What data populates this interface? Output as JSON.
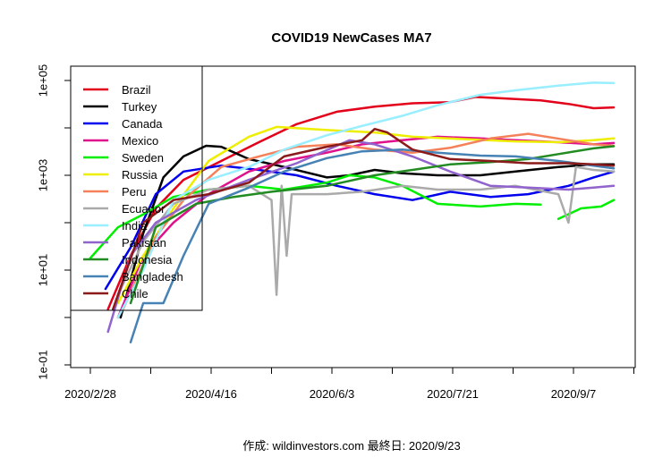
{
  "chart_data": {
    "type": "line",
    "title": "COVID19 NewCases MA7",
    "caption": "作成: wildinvestors.com 最終日: 2020/9/23",
    "xlabel": "",
    "ylabel": "",
    "x_ticks": [
      "2020/2/28",
      "2020/4/16",
      "2020/6/3",
      "2020/7/21",
      "2020/9/7"
    ],
    "x_range": [
      "2020/2/28",
      "2020/9/23"
    ],
    "y_scale": "log",
    "y_ticks": [
      "1e-01",
      "1e+01",
      "1e+03",
      "1e+05"
    ],
    "y_range": [
      0.1,
      100000
    ],
    "grid": false,
    "legend_position": "top-left",
    "series": [
      {
        "name": "Brazil",
        "color": "#e3001b",
        "points": [
          [
            "2020/3/6",
            1.5
          ],
          [
            "2020/3/15",
            20
          ],
          [
            "2020/3/25",
            200
          ],
          [
            "2020/4/5",
            800
          ],
          [
            "2020/4/20",
            2000
          ],
          [
            "2020/5/5",
            5000
          ],
          [
            "2020/5/20",
            12000
          ],
          [
            "2020/6/5",
            22000
          ],
          [
            "2020/6/20",
            28000
          ],
          [
            "2020/7/5",
            33000
          ],
          [
            "2020/7/20",
            35000
          ],
          [
            "2020/7/30",
            45000
          ],
          [
            "2020/8/10",
            42000
          ],
          [
            "2020/8/25",
            38000
          ],
          [
            "2020/9/5",
            32000
          ],
          [
            "2020/9/15",
            26000
          ],
          [
            "2020/9/23",
            27000
          ]
        ]
      },
      {
        "name": "Turkey",
        "color": "#000000",
        "points": [
          [
            "2020/3/11",
            1
          ],
          [
            "2020/3/20",
            60
          ],
          [
            "2020/3/28",
            900
          ],
          [
            "2020/4/5",
            2500
          ],
          [
            "2020/4/14",
            4200
          ],
          [
            "2020/4/20",
            4000
          ],
          [
            "2020/5/1",
            2200
          ],
          [
            "2020/5/15",
            1500
          ],
          [
            "2020/6/1",
            900
          ],
          [
            "2020/6/10",
            1000
          ],
          [
            "2020/6/20",
            1300
          ],
          [
            "2020/7/1",
            1100
          ],
          [
            "2020/7/15",
            1000
          ],
          [
            "2020/8/1",
            1000
          ],
          [
            "2020/8/15",
            1200
          ],
          [
            "2020/9/1",
            1500
          ],
          [
            "2020/9/15",
            1700
          ],
          [
            "2020/9/23",
            1700
          ]
        ]
      },
      {
        "name": "Canada",
        "color": "#0000ee",
        "points": [
          [
            "2020/3/5",
            4
          ],
          [
            "2020/3/15",
            30
          ],
          [
            "2020/3/25",
            400
          ],
          [
            "2020/4/5",
            1200
          ],
          [
            "2020/4/20",
            1600
          ],
          [
            "2020/5/5",
            1300
          ],
          [
            "2020/5/20",
            1000
          ],
          [
            "2020/6/5",
            600
          ],
          [
            "2020/6/20",
            400
          ],
          [
            "2020/7/5",
            300
          ],
          [
            "2020/7/20",
            450
          ],
          [
            "2020/8/5",
            350
          ],
          [
            "2020/8/20",
            400
          ],
          [
            "2020/9/5",
            600
          ],
          [
            "2020/9/15",
            900
          ],
          [
            "2020/9/23",
            1200
          ]
        ]
      },
      {
        "name": "Mexico",
        "color": "#e0118c",
        "points": [
          [
            "2020/3/10",
            1
          ],
          [
            "2020/3/20",
            20
          ],
          [
            "2020/4/1",
            100
          ],
          [
            "2020/4/15",
            400
          ],
          [
            "2020/5/1",
            1200
          ],
          [
            "2020/5/15",
            2000
          ],
          [
            "2020/6/1",
            3000
          ],
          [
            "2020/6/15",
            4500
          ],
          [
            "2020/7/1",
            5500
          ],
          [
            "2020/7/15",
            6500
          ],
          [
            "2020/8/1",
            6000
          ],
          [
            "2020/8/15",
            5500
          ],
          [
            "2020/9/1",
            5000
          ],
          [
            "2020/9/15",
            4500
          ],
          [
            "2020/9/23",
            4800
          ]
        ]
      },
      {
        "name": "Sweden",
        "color": "#00ee00",
        "points": [
          [
            "2020/2/28",
            18
          ],
          [
            "2020/3/10",
            80
          ],
          [
            "2020/3/20",
            150
          ],
          [
            "2020/4/1",
            350
          ],
          [
            "2020/4/15",
            500
          ],
          [
            "2020/5/1",
            600
          ],
          [
            "2020/5/15",
            500
          ],
          [
            "2020/6/1",
            700
          ],
          [
            "2020/6/10",
            1000
          ],
          [
            "2020/6/20",
            900
          ],
          [
            "2020/7/1",
            600
          ],
          [
            "2020/7/15",
            250
          ],
          [
            "2020/8/1",
            220
          ],
          [
            "2020/8/15",
            250
          ],
          [
            "2020/8/25",
            240
          ],
          [
            null,
            null
          ],
          [
            "2020/9/1",
            120
          ],
          [
            "2020/9/10",
            200
          ],
          [
            "2020/9/18",
            220
          ],
          [
            "2020/9/23",
            300
          ]
        ]
      },
      {
        "name": "Russia",
        "color": "#eeee00",
        "points": [
          [
            "2020/3/10",
            2
          ],
          [
            "2020/3/20",
            20
          ],
          [
            "2020/4/1",
            200
          ],
          [
            "2020/4/15",
            2000
          ],
          [
            "2020/5/1",
            6500
          ],
          [
            "2020/5/12",
            10500
          ],
          [
            "2020/6/1",
            9000
          ],
          [
            "2020/6/20",
            8000
          ],
          [
            "2020/7/5",
            6500
          ],
          [
            "2020/7/25",
            5800
          ],
          [
            "2020/8/15",
            5200
          ],
          [
            "2020/9/1",
            5000
          ],
          [
            "2020/9/15",
            5500
          ],
          [
            "2020/9/23",
            6000
          ]
        ]
      },
      {
        "name": "Peru",
        "color": "#f5815b",
        "points": [
          [
            "2020/3/12",
            1.5
          ],
          [
            "2020/3/25",
            50
          ],
          [
            "2020/4/5",
            300
          ],
          [
            "2020/4/20",
            1500
          ],
          [
            "2020/5/5",
            2500
          ],
          [
            "2020/5/20",
            4000
          ],
          [
            "2020/6/5",
            4500
          ],
          [
            "2020/6/20",
            3500
          ],
          [
            "2020/7/5",
            3000
          ],
          [
            "2020/7/20",
            3800
          ],
          [
            "2020/8/5",
            6000
          ],
          [
            "2020/8/20",
            7500
          ],
          [
            "2020/9/5",
            5500
          ],
          [
            "2020/9/15",
            4500
          ],
          [
            "2020/9/23",
            4200
          ]
        ]
      },
      {
        "name": "Ecuador",
        "color": "#aaaaaa",
        "points": [
          [
            "2020/3/10",
            3
          ],
          [
            "2020/3/20",
            40
          ],
          [
            "2020/4/1",
            250
          ],
          [
            "2020/4/15",
            500
          ],
          [
            "2020/5/1",
            600
          ],
          [
            "2020/5/10",
            300
          ],
          [
            "2020/5/12",
            3
          ],
          [
            "2020/5/14",
            600
          ],
          [
            "2020/5/16",
            20
          ],
          [
            "2020/5/18",
            400
          ],
          [
            "2020/6/1",
            400
          ],
          [
            "2020/6/15",
            450
          ],
          [
            "2020/7/1",
            600
          ],
          [
            "2020/7/15",
            500
          ],
          [
            "2020/8/1",
            500
          ],
          [
            "2020/8/15",
            600
          ],
          [
            "2020/9/1",
            400
          ],
          [
            "2020/9/5",
            100
          ],
          [
            "2020/9/8",
            1500
          ],
          [
            "2020/9/15",
            1300
          ],
          [
            "2020/9/23",
            1200
          ]
        ]
      },
      {
        "name": "India",
        "color": "#99eeff",
        "points": [
          [
            "2020/3/10",
            1
          ],
          [
            "2020/3/20",
            10
          ],
          [
            "2020/4/1",
            300
          ],
          [
            "2020/4/15",
            800
          ],
          [
            "2020/5/1",
            1500
          ],
          [
            "2020/5/15",
            3500
          ],
          [
            "2020/6/1",
            7000
          ],
          [
            "2020/6/15",
            11000
          ],
          [
            "2020/7/1",
            18000
          ],
          [
            "2020/7/15",
            30000
          ],
          [
            "2020/8/1",
            50000
          ],
          [
            "2020/8/15",
            62000
          ],
          [
            "2020/9/1",
            78000
          ],
          [
            "2020/9/15",
            90000
          ],
          [
            "2020/9/23",
            88000
          ]
        ]
      },
      {
        "name": "Pakistan",
        "color": "#9063cd",
        "points": [
          [
            "2020/3/6",
            0.5
          ],
          [
            "2020/3/15",
            20
          ],
          [
            "2020/3/25",
            100
          ],
          [
            "2020/4/10",
            300
          ],
          [
            "2020/5/1",
            800
          ],
          [
            "2020/5/20",
            1800
          ],
          [
            "2020/6/10",
            5500
          ],
          [
            "2020/6/20",
            4500
          ],
          [
            "2020/7/5",
            2500
          ],
          [
            "2020/7/20",
            1200
          ],
          [
            "2020/8/5",
            600
          ],
          [
            "2020/8/20",
            550
          ],
          [
            "2020/9/5",
            500
          ],
          [
            "2020/9/15",
            550
          ],
          [
            "2020/9/23",
            600
          ]
        ]
      },
      {
        "name": "Indonesia",
        "color": "#228b22",
        "points": [
          [
            "2020/3/15",
            2
          ],
          [
            "2020/3/25",
            80
          ],
          [
            "2020/4/10",
            250
          ],
          [
            "2020/4/25",
            350
          ],
          [
            "2020/5/10",
            450
          ],
          [
            "2020/6/1",
            600
          ],
          [
            "2020/6/20",
            1000
          ],
          [
            "2020/7/5",
            1300
          ],
          [
            "2020/7/20",
            1700
          ],
          [
            "2020/8/5",
            1900
          ],
          [
            "2020/8/20",
            2200
          ],
          [
            "2020/9/1",
            2800
          ],
          [
            "2020/9/15",
            3700
          ],
          [
            "2020/9/23",
            4100
          ]
        ]
      },
      {
        "name": "Bangladesh",
        "color": "#4682b4",
        "points": [
          [
            "2020/3/15",
            0.3
          ],
          [
            "2020/3/20",
            2
          ],
          [
            "2020/3/28",
            2
          ],
          [
            "2020/4/5",
            20
          ],
          [
            "2020/4/15",
            250
          ],
          [
            "2020/5/1",
            550
          ],
          [
            "2020/5/15",
            1200
          ],
          [
            "2020/6/1",
            2300
          ],
          [
            "2020/6/15",
            3200
          ],
          [
            "2020/7/1",
            3500
          ],
          [
            "2020/7/15",
            3000
          ],
          [
            "2020/8/1",
            2600
          ],
          [
            "2020/8/15",
            2500
          ],
          [
            "2020/9/1",
            2000
          ],
          [
            "2020/9/15",
            1600
          ],
          [
            "2020/9/23",
            1400
          ]
        ]
      },
      {
        "name": "Chile",
        "color": "#8b1a1a",
        "points": [
          [
            "2020/3/8",
            1.5
          ],
          [
            "2020/3/20",
            100
          ],
          [
            "2020/4/1",
            300
          ],
          [
            "2020/4/15",
            400
          ],
          [
            "2020/5/1",
            700
          ],
          [
            "2020/5/15",
            2500
          ],
          [
            "2020/6/1",
            4000
          ],
          [
            "2020/6/15",
            5500
          ],
          [
            "2020/6/20",
            9500
          ],
          [
            "2020/6/25",
            8000
          ],
          [
            "2020/7/5",
            3500
          ],
          [
            "2020/7/20",
            2200
          ],
          [
            "2020/8/5",
            2000
          ],
          [
            "2020/8/20",
            1800
          ],
          [
            "2020/9/5",
            1800
          ],
          [
            "2020/9/15",
            1700
          ],
          [
            "2020/9/23",
            1600
          ]
        ]
      }
    ]
  }
}
